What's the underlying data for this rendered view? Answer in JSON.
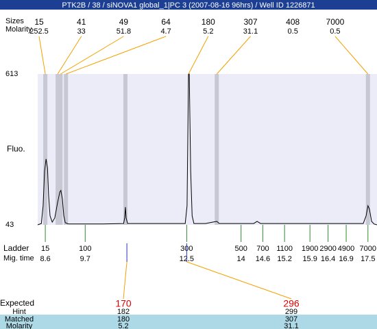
{
  "title": "PTK2B / 38 / siNOVA1 global_1|PC 3 (2007-08-16 96hrs) / Well ID 1226871",
  "chart_data": {
    "type": "line",
    "ylabel": "Fluo.",
    "ylim": [
      43,
      613
    ],
    "yticks": [
      43,
      613
    ],
    "xlim": [
      8.39,
      17.75
    ],
    "background": "#ececf8",
    "line_color": "#000000",
    "x": [
      8.39,
      8.49,
      8.54,
      8.58,
      8.62,
      8.66,
      8.69,
      8.73,
      8.79,
      8.86,
      8.94,
      9.0,
      9.03,
      9.07,
      9.11,
      9.15,
      9.24,
      10.19,
      10.76,
      10.79,
      10.81,
      10.83,
      10.87,
      12.46,
      12.51,
      12.55,
      12.57,
      12.61,
      12.65,
      12.7,
      13.02,
      13.21,
      13.33,
      13.4,
      14.35,
      14.44,
      14.54,
      17.37,
      17.45,
      17.5,
      17.54,
      17.6,
      17.67,
      17.75
    ],
    "values": [
      43,
      48,
      115,
      245,
      292,
      258,
      154,
      77,
      53,
      69,
      128,
      167,
      173,
      141,
      77,
      51,
      46,
      46,
      48,
      69,
      110,
      69,
      48,
      48,
      115,
      613,
      613,
      245,
      77,
      48,
      48,
      53,
      56,
      48,
      48,
      56,
      48,
      48,
      77,
      115,
      103,
      56,
      46,
      43
    ],
    "bands": [
      8.6,
      8.94,
      9.02,
      9.17,
      10.81,
      13.33,
      17.5
    ],
    "band_color": "#c8c8d4",
    "peaks": {
      "size_label": "Sizes",
      "molarity_label": "Molarity",
      "sizes": [
        15,
        41,
        49,
        64,
        180,
        307,
        408,
        7000
      ],
      "molarity": [
        252.5,
        33,
        51.8,
        4.7,
        5.2,
        31.1,
        0.5,
        0.5
      ],
      "times": [
        8.6,
        8.94,
        9.02,
        9.17,
        12.55,
        13.33,
        null,
        17.5
      ]
    },
    "ladder": {
      "label": "Ladder",
      "time_label": "Mig. time",
      "color": "#2e8b2e",
      "sizes": [
        15,
        100,
        300,
        500,
        700,
        1100,
        1900,
        2900,
        4900,
        7000
      ],
      "times": [
        8.6,
        9.7,
        12.5,
        14,
        14.6,
        15.2,
        15.9,
        16.4,
        16.9,
        17.5
      ]
    },
    "expected": {
      "labels": [
        "Expected",
        "Hint",
        "Matched",
        "Molarity"
      ],
      "values": [
        170,
        296
      ],
      "hint": [
        182,
        299
      ],
      "matched": [
        180,
        307
      ],
      "molarity": [
        5.2,
        31.1
      ],
      "times": [
        10.85,
        12.5
      ]
    }
  }
}
